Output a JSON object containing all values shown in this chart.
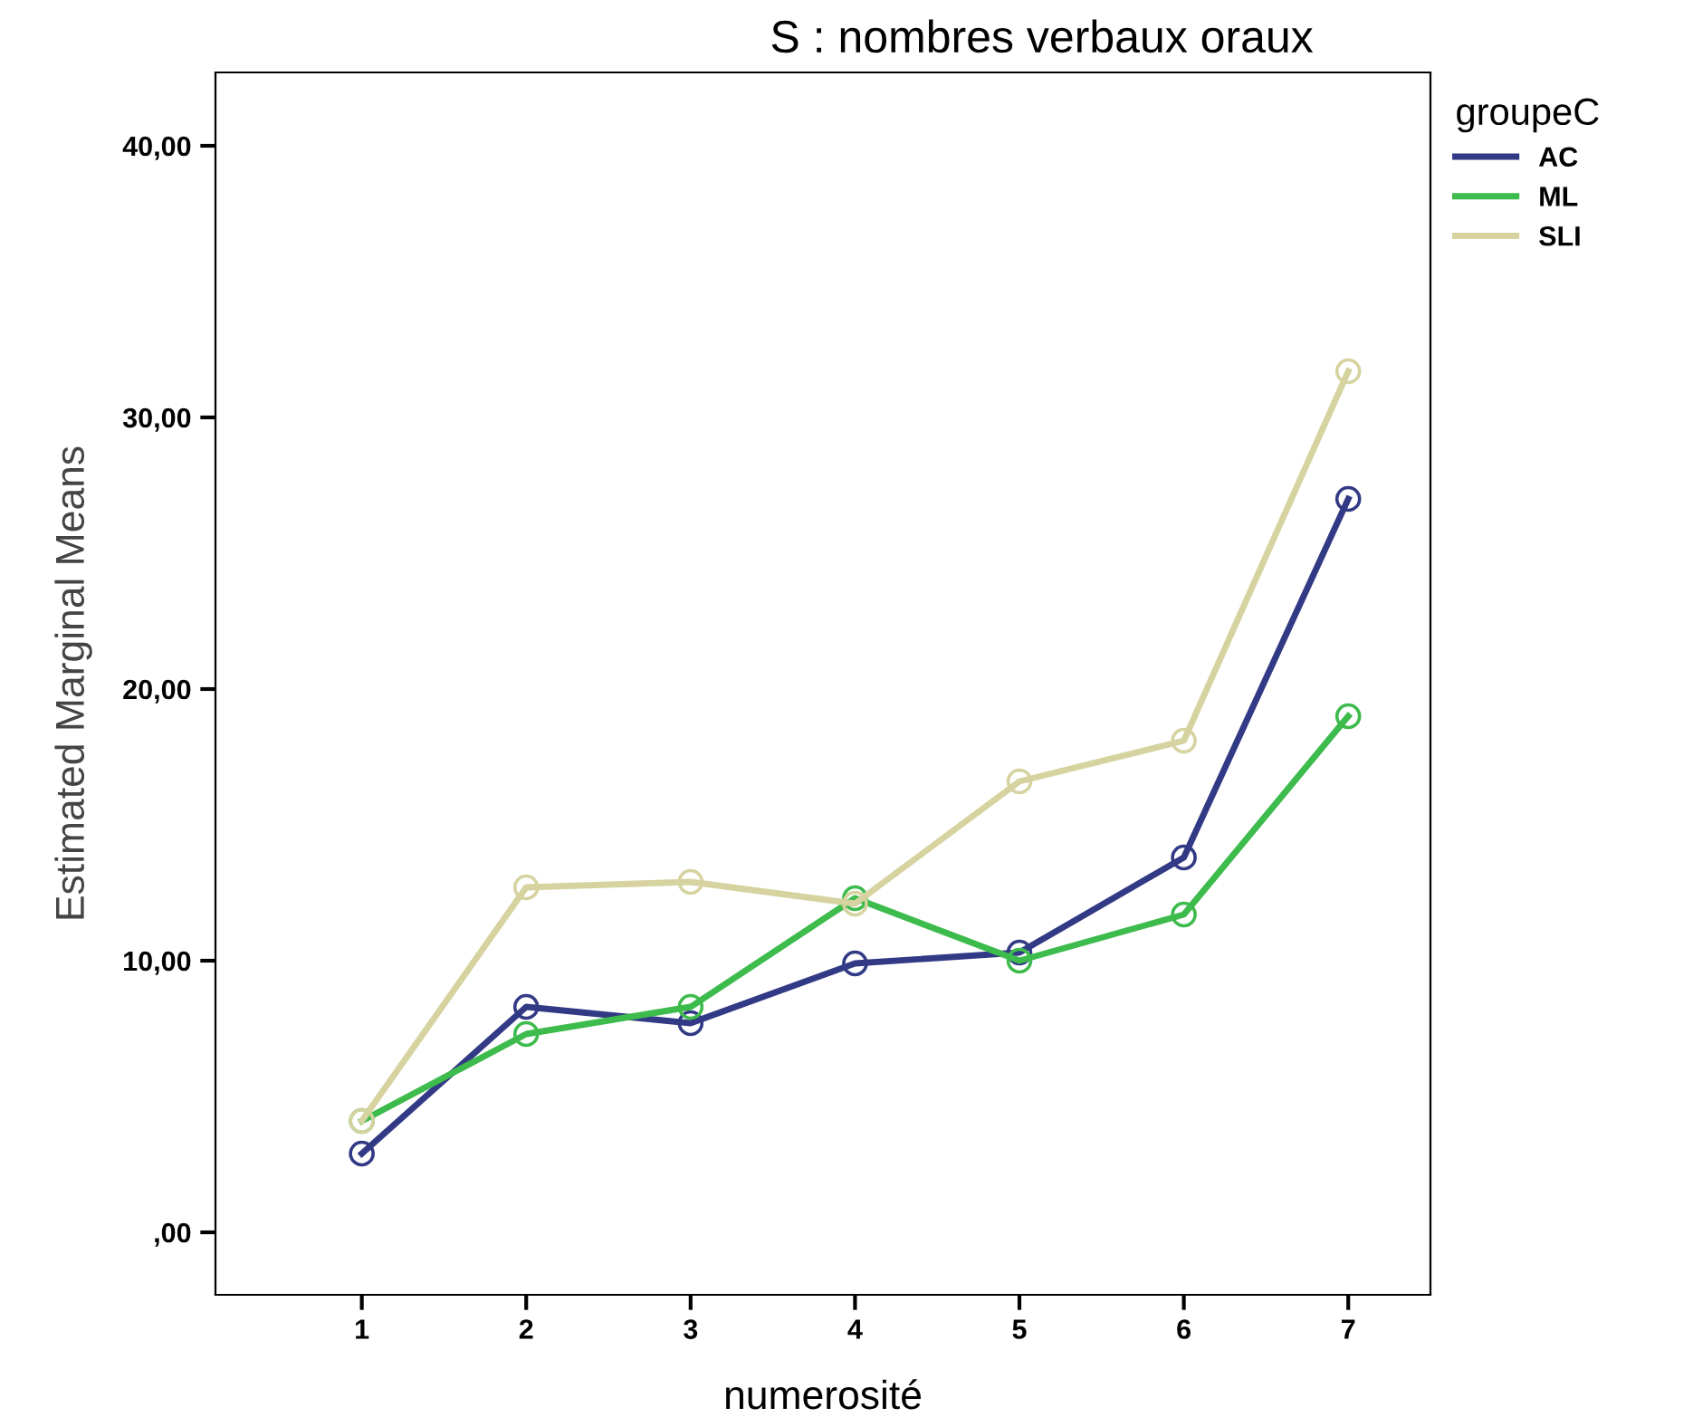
{
  "chart_data": {
    "type": "line",
    "title": "S : nombres verbaux oraux",
    "xlabel": "numerosité",
    "ylabel": "Estimated Marginal Means",
    "legend_title": "groupeC",
    "categories": [
      "1",
      "2",
      "3",
      "4",
      "5",
      "6",
      "7"
    ],
    "series": [
      {
        "name": "AC",
        "color": "#323a85",
        "values": [
          2.9,
          8.3,
          7.7,
          9.9,
          10.3,
          13.8,
          27.0
        ]
      },
      {
        "name": "ML",
        "color": "#3dbb4c",
        "values": [
          4.1,
          7.3,
          8.3,
          12.3,
          10.0,
          11.7,
          19.0
        ]
      },
      {
        "name": "SLI",
        "color": "#d6d3a0",
        "values": [
          4.1,
          12.7,
          12.9,
          12.1,
          16.6,
          18.1,
          31.7
        ]
      }
    ],
    "ylim": [
      -2.3,
      42.7
    ],
    "yticks": [
      {
        "value": 0,
        "label": ",00"
      },
      {
        "value": 10,
        "label": "10,00"
      },
      {
        "value": 20,
        "label": "20,00"
      },
      {
        "value": 30,
        "label": "30,00"
      },
      {
        "value": 40,
        "label": "40,00"
      }
    ],
    "grid": false,
    "legend": "top right",
    "marker": "circle",
    "line_style": "solid"
  }
}
